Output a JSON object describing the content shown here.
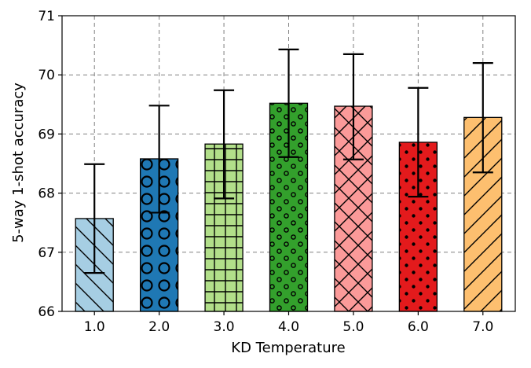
{
  "chart_data": {
    "type": "bar",
    "title": "",
    "xlabel": "KD Temperature",
    "ylabel": "5-way 1-shot accuracy",
    "ylim": [
      66,
      71
    ],
    "yticks": [
      "66",
      "67",
      "68",
      "69",
      "70",
      "71"
    ],
    "grid": true,
    "categories": [
      "1.0",
      "2.0",
      "3.0",
      "4.0",
      "5.0",
      "6.0",
      "7.0"
    ],
    "values": [
      67.57,
      68.58,
      68.83,
      69.52,
      69.47,
      68.86,
      69.28
    ],
    "error_bars": [
      {
        "low": 66.65,
        "high": 68.49
      },
      {
        "low": 67.67,
        "high": 69.48
      },
      {
        "low": 67.91,
        "high": 69.74
      },
      {
        "low": 68.61,
        "high": 70.43
      },
      {
        "low": 68.57,
        "high": 70.35
      },
      {
        "low": 67.94,
        "high": 69.78
      },
      {
        "low": 68.35,
        "high": 70.2
      }
    ],
    "colors": [
      "#a6cee3",
      "#1f78b4",
      "#b2df8a",
      "#33a02c",
      "#fb9a99",
      "#e31a1c",
      "#fdbf6f"
    ],
    "hatches": [
      "backslash",
      "circle-large",
      "grid",
      "circle-small",
      "cross",
      "dot",
      "slash"
    ]
  }
}
